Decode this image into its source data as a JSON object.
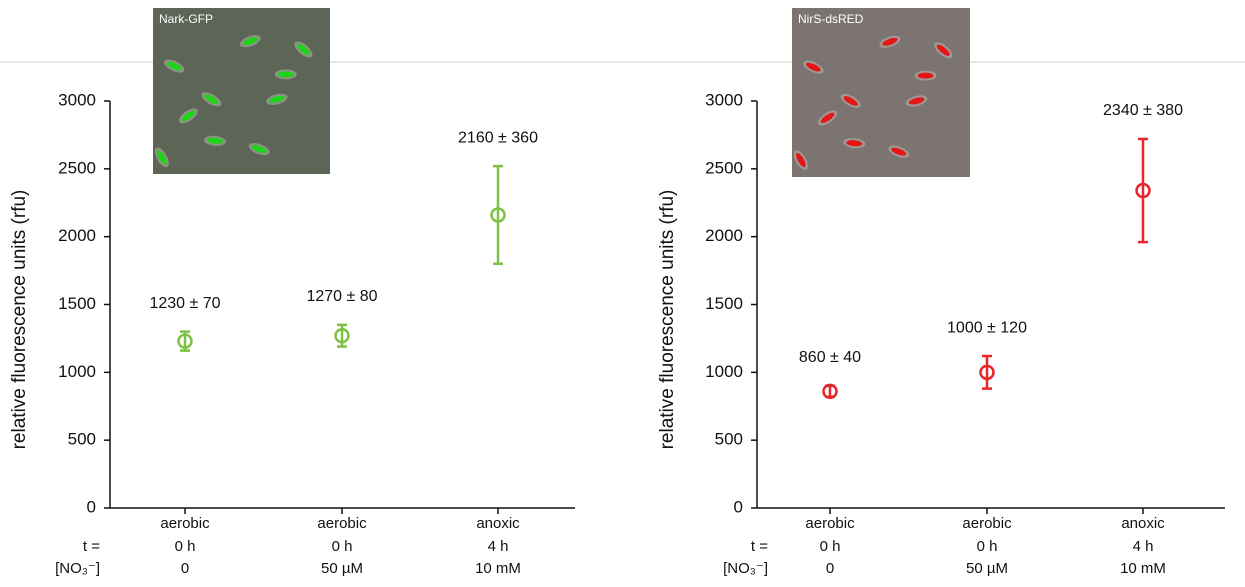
{
  "chart_data": [
    {
      "type": "scatter",
      "inset_label": "Nark-GFP",
      "y_label": "relative fluorescence units (rfu)",
      "categories": [
        "aerobic",
        "aerobic",
        "anoxic"
      ],
      "category_rows": [
        {
          "label": "t =",
          "values": [
            "0 h",
            "0 h",
            "4 h"
          ]
        },
        {
          "label": "[NO₃⁻]",
          "values": [
            "0",
            "50 µM",
            "10 mM"
          ]
        }
      ],
      "series": [
        {
          "color": "#7dc242",
          "values": [
            1230,
            1270,
            2160
          ],
          "errors": [
            70,
            80,
            360
          ],
          "value_labels": [
            "1230 ± 70",
            "1270 ± 80",
            "2160 ± 360"
          ]
        }
      ],
      "ylim": [
        0,
        3000
      ],
      "yticks": [
        0,
        500,
        1000,
        1500,
        2000,
        2500,
        3000
      ]
    },
    {
      "type": "scatter",
      "inset_label": "NirS-dsRED",
      "y_label": "relative fluorescence units (rfu)",
      "categories": [
        "aerobic",
        "aerobic",
        "anoxic"
      ],
      "category_rows": [
        {
          "label": "t =",
          "values": [
            "0 h",
            "0 h",
            "4 h"
          ]
        },
        {
          "label": "[NO₃⁻]",
          "values": [
            "0",
            "50 µM",
            "10 mM"
          ]
        }
      ],
      "series": [
        {
          "color": "#e8262a",
          "values": [
            860,
            1000,
            2340
          ],
          "errors": [
            40,
            120,
            380
          ],
          "value_labels": [
            "860 ± 40",
            "1000 ± 120",
            "2340 ± 380"
          ]
        }
      ],
      "ylim": [
        0,
        3000
      ],
      "yticks": [
        0,
        500,
        1000,
        1500,
        2000,
        2500,
        3000
      ]
    }
  ]
}
